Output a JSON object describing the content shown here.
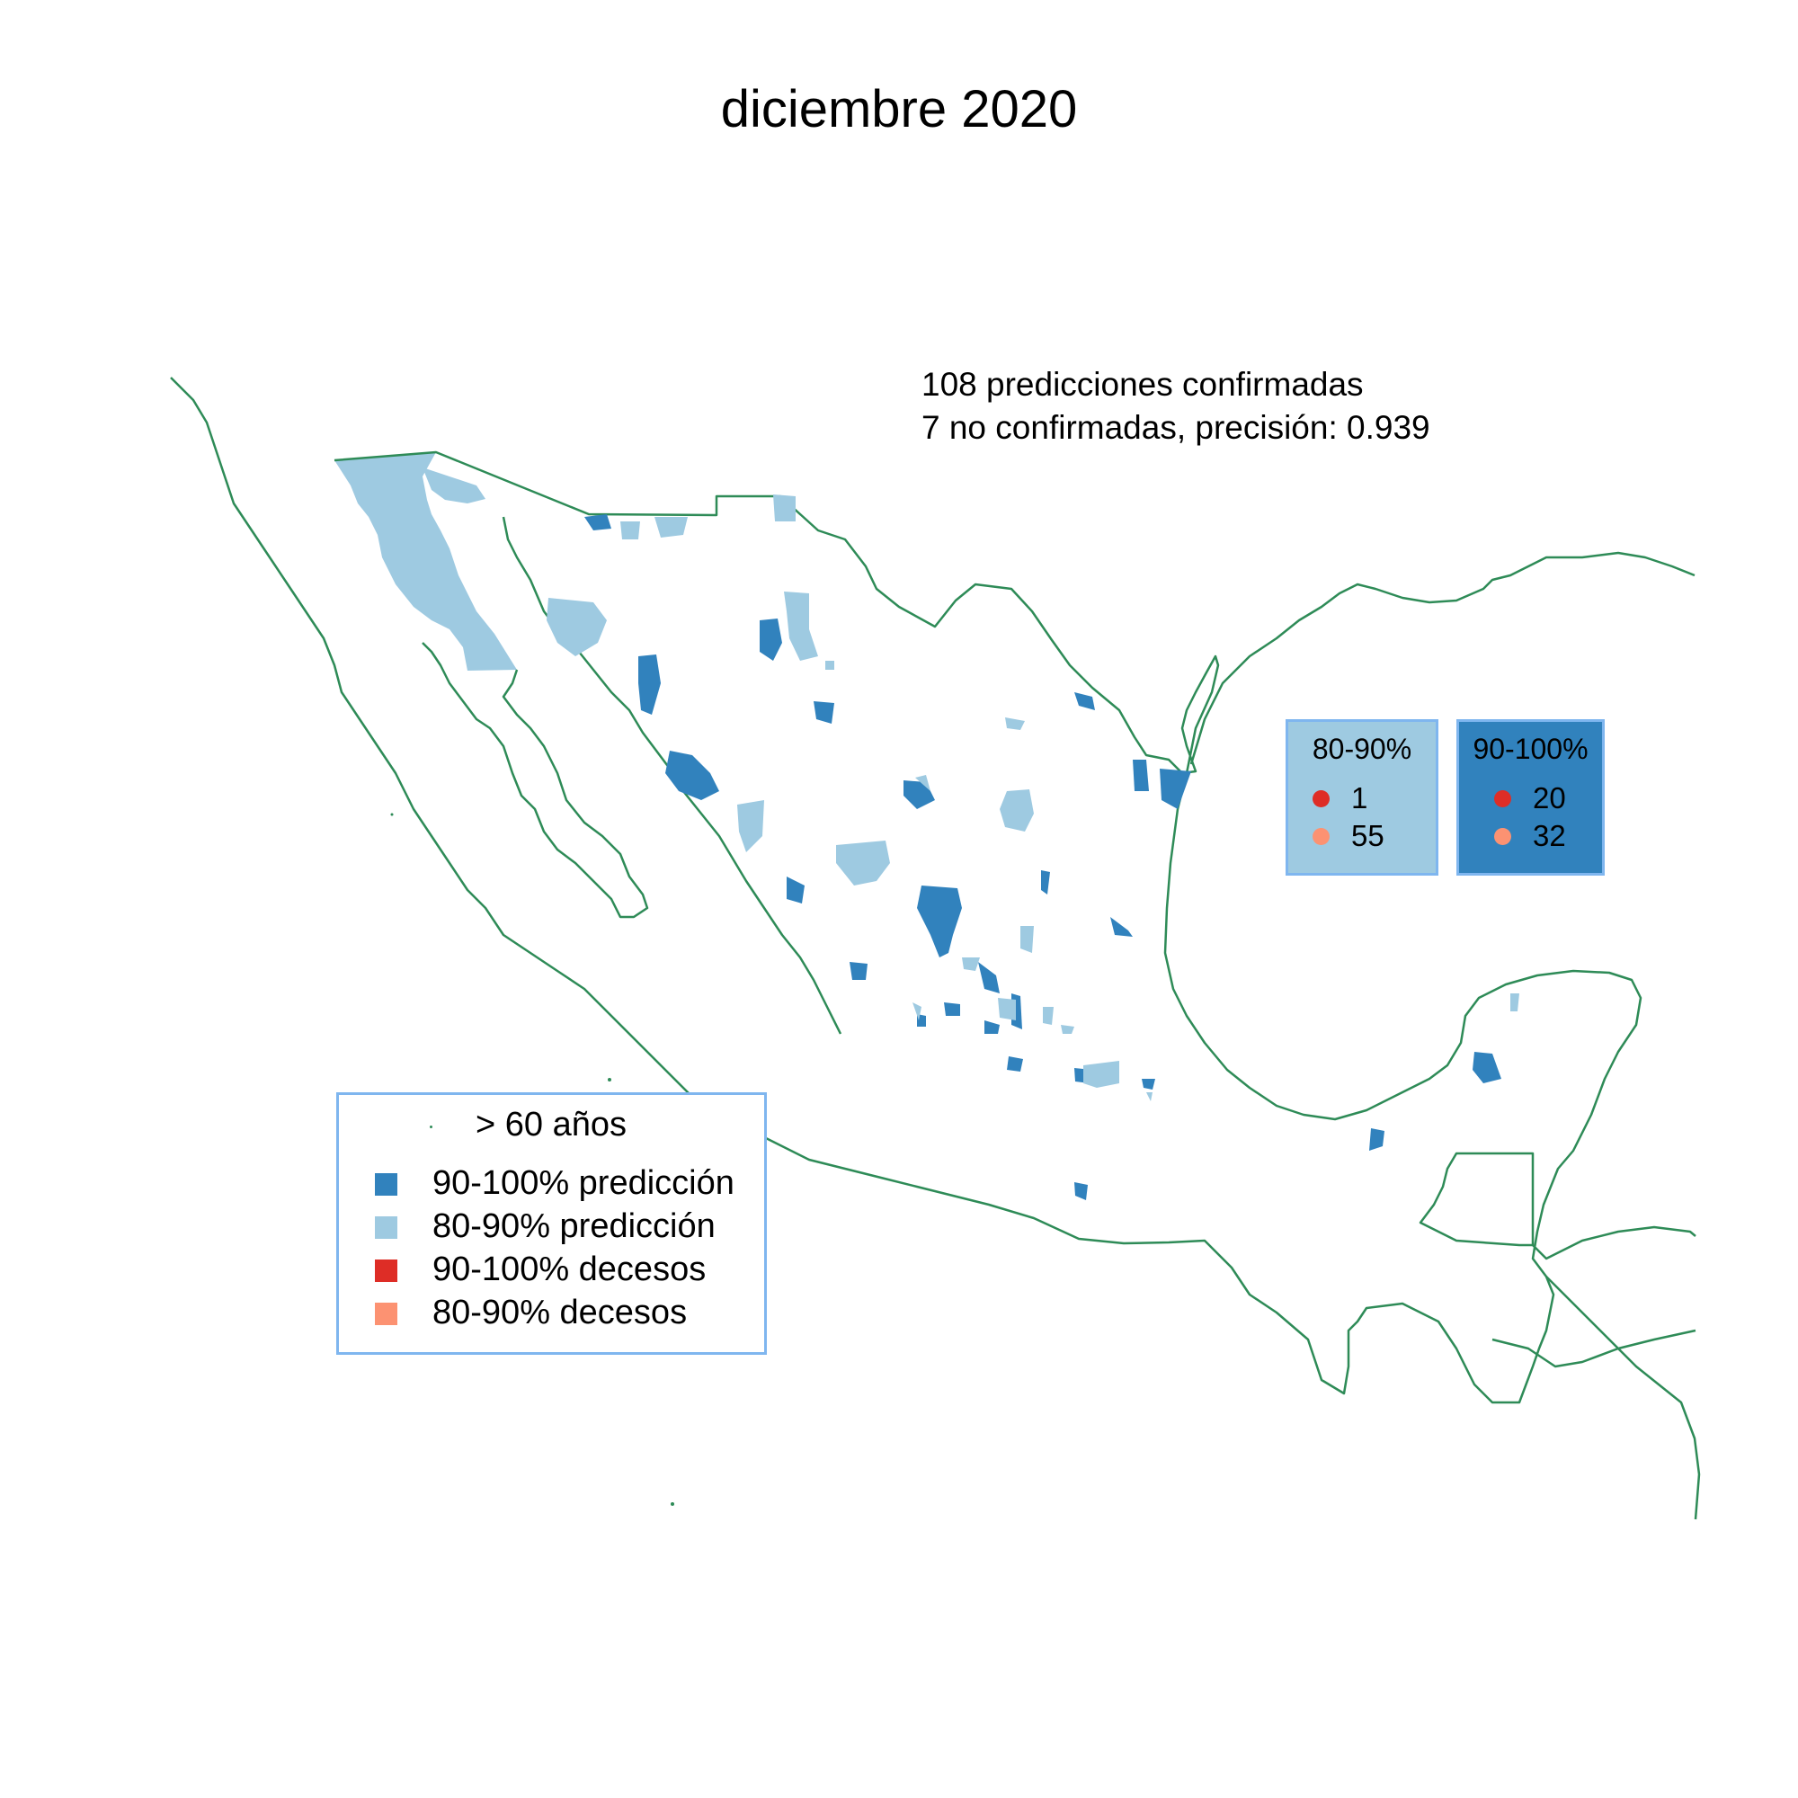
{
  "title": "diciembre 2020",
  "summary": {
    "line1": "108 predicciones confirmadas",
    "line2": "7 no confirmadas, precisión:  0.939"
  },
  "colors": {
    "pred_90_100": "#3182bd",
    "pred_80_90": "#9ecae1",
    "dec_90_100": "#de2d26",
    "dec_80_90": "#fc9272",
    "border": "#2e8b57",
    "box_outline": "#7fb6ef"
  },
  "stat_boxes": [
    {
      "label": "80-90%",
      "dec_90_100": "1",
      "dec_80_90": "55"
    },
    {
      "label": "90-100%",
      "dec_90_100": "20",
      "dec_80_90": "32"
    }
  ],
  "legend": {
    "items": [
      {
        "label": "> 60 años",
        "symbol": "dot"
      },
      {
        "label": "90-100% predicción",
        "symbol": "square"
      },
      {
        "label": "80-90% predicción",
        "symbol": "square"
      },
      {
        "label": "90-100% decesos",
        "symbol": "square"
      },
      {
        "label": "80-90% decesos",
        "symbol": "square"
      }
    ]
  }
}
